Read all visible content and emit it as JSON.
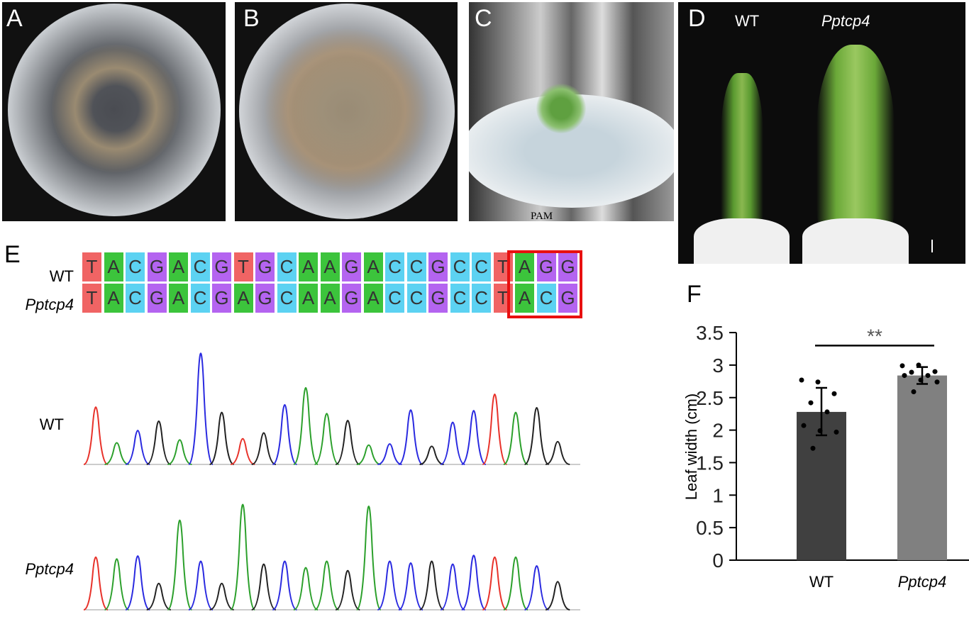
{
  "panels": {
    "a": {
      "label": "A"
    },
    "b": {
      "label": "B"
    },
    "c": {
      "label": "C"
    },
    "d": {
      "label": "D",
      "wt_label": "WT",
      "mutant_label": "Pptcp4"
    },
    "e": {
      "label": "E",
      "pam_label": "PAM",
      "row_labels": [
        "WT",
        "Pptcp4"
      ],
      "sequences": [
        "TACGACGTGCAAGACCGCCTAGG",
        "TACGACGAGCAAGACCGCCTACG"
      ],
      "base_colors": {
        "T": "#f06464",
        "A": "#3cc43c",
        "C": "#5cd2f2",
        "G": "#b464f0"
      },
      "trace_colors": {
        "T": "#e8322a",
        "A": "#2ca02c",
        "C": "#2a2ae0",
        "G": "#222222"
      },
      "chromatograms": [
        {
          "label": "WT",
          "peaks": [
            98,
            37,
            58,
            74,
            42,
            190,
            89,
            44,
            54,
            102,
            131,
            87,
            75,
            33,
            35,
            93,
            31,
            72,
            92,
            120,
            89,
            97,
            39
          ]
        },
        {
          "label": "Pptcp4",
          "peaks": [
            90,
            87,
            92,
            45,
            153,
            83,
            45,
            180,
            78,
            83,
            72,
            83,
            67,
            177,
            83,
            80,
            83,
            78,
            93,
            90,
            90,
            75,
            48
          ]
        }
      ]
    },
    "f": {
      "label": "F"
    }
  },
  "chart_data": {
    "type": "bar",
    "categories": [
      "WT",
      "Pptcp4"
    ],
    "values": [
      2.28,
      2.84
    ],
    "error_bars": [
      [
        1.92,
        2.65
      ],
      [
        2.71,
        2.97
      ]
    ],
    "points": [
      [
        2.77,
        2.74,
        2.56,
        2.42,
        2.28,
        2.07,
        1.99,
        1.97,
        1.72
      ],
      [
        2.99,
        3.0,
        2.9,
        2.89,
        2.84,
        2.84,
        2.77,
        2.74,
        2.59
      ]
    ],
    "bar_colors": [
      "#404040",
      "#808080"
    ],
    "ylabel": "Leaf width (cm)",
    "xlabel": "",
    "ylim": [
      0,
      3.5
    ],
    "yticks": [
      "0",
      "0.5",
      "1",
      "1.5",
      "2",
      "2.5",
      "3",
      "3.5"
    ],
    "significance": "**",
    "grid": false
  }
}
